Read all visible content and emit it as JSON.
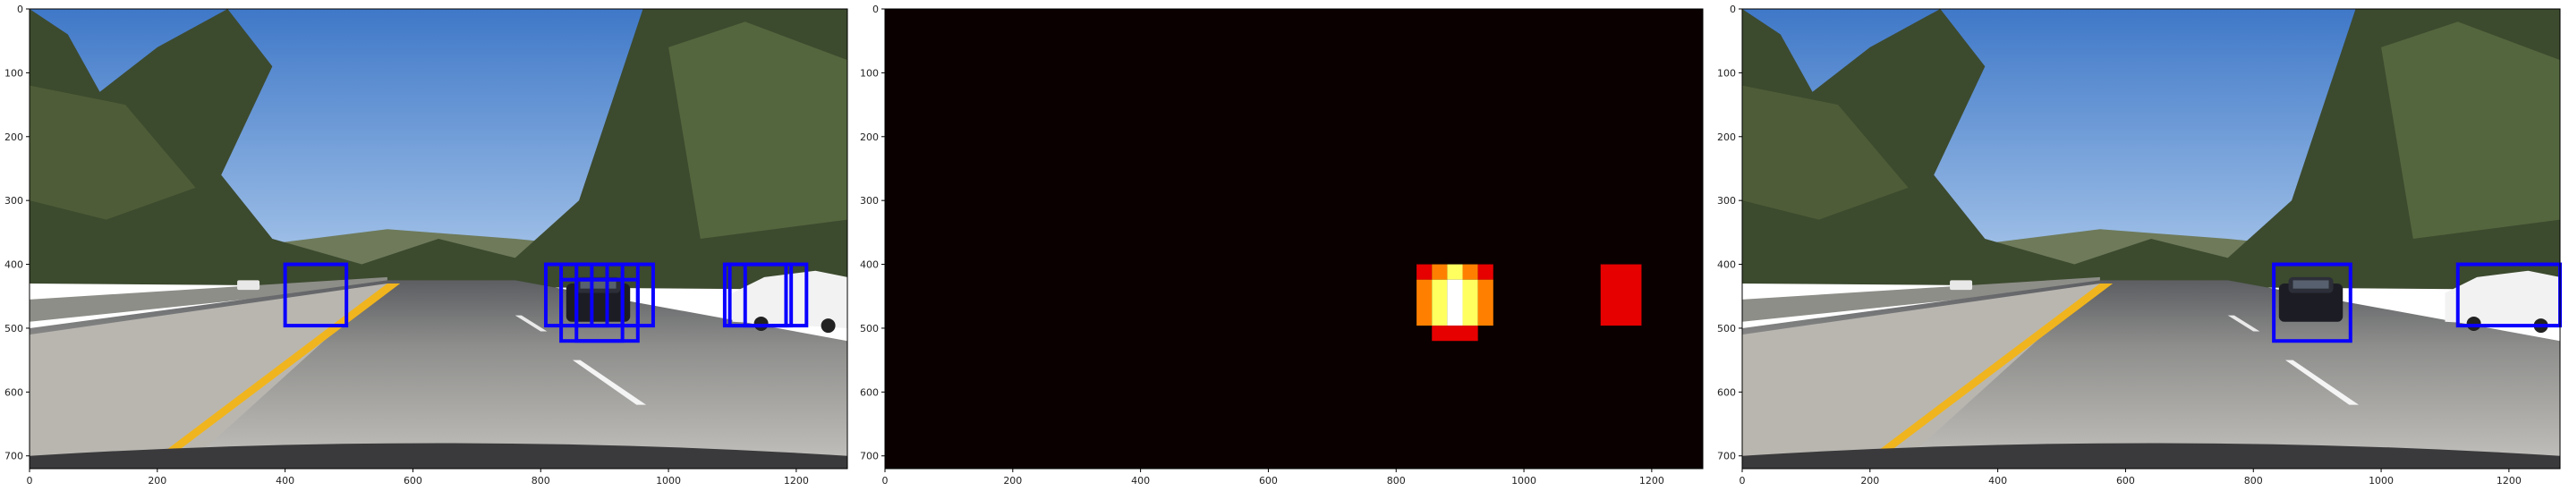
{
  "chart_data": [
    {
      "type": "image",
      "title": "",
      "xlabel": "",
      "ylabel": "",
      "xlim": [
        0,
        1280
      ],
      "ylim": [
        720,
        0
      ],
      "xticks": [
        0,
        200,
        400,
        600,
        800,
        1000,
        1200
      ],
      "yticks": [
        0,
        100,
        200,
        300,
        400,
        500,
        600,
        700
      ],
      "content": "road scene with raw detection windows",
      "box_color": "#0a00ff",
      "boxes": [
        [
          400,
          400,
          496,
          496
        ],
        [
          808,
          400,
          904,
          496
        ],
        [
          832,
          400,
          928,
          496
        ],
        [
          856,
          400,
          952,
          496
        ],
        [
          880,
          400,
          976,
          496
        ],
        [
          832,
          424,
          928,
          520
        ],
        [
          856,
          424,
          952,
          520
        ],
        [
          1096,
          400,
          1192,
          496
        ],
        [
          1120,
          400,
          1216,
          496
        ],
        [
          1088,
          400,
          1184,
          496
        ]
      ]
    },
    {
      "type": "heatmap",
      "title": "",
      "xlabel": "",
      "ylabel": "",
      "xlim": [
        0,
        1280
      ],
      "ylim": [
        720,
        0
      ],
      "xticks": [
        0,
        200,
        400,
        600,
        800,
        1000,
        1200
      ],
      "yticks": [
        0,
        100,
        200,
        300,
        400,
        500,
        600,
        700
      ],
      "colormap": "hot",
      "background_color": "#0b0000",
      "vmax": 6,
      "cells": [
        [
          832,
          400,
          856,
          424,
          2
        ],
        [
          856,
          400,
          880,
          424,
          3
        ],
        [
          880,
          400,
          904,
          424,
          4
        ],
        [
          904,
          400,
          928,
          424,
          3
        ],
        [
          928,
          400,
          952,
          424,
          2
        ],
        [
          832,
          424,
          856,
          496,
          3
        ],
        [
          856,
          424,
          880,
          496,
          4
        ],
        [
          880,
          424,
          904,
          496,
          6
        ],
        [
          904,
          424,
          928,
          496,
          4
        ],
        [
          928,
          424,
          952,
          496,
          3
        ],
        [
          856,
          496,
          928,
          520,
          2
        ],
        [
          1120,
          400,
          1184,
          496,
          2
        ]
      ]
    },
    {
      "type": "image",
      "title": "",
      "xlabel": "",
      "ylabel": "",
      "xlim": [
        0,
        1280
      ],
      "ylim": [
        720,
        0
      ],
      "xticks": [
        0,
        200,
        400,
        600,
        800,
        1000,
        1200
      ],
      "yticks": [
        0,
        100,
        200,
        300,
        400,
        500,
        600,
        700
      ],
      "content": "road scene with merged vehicle bounding boxes",
      "box_color": "#0a00ff",
      "boxes": [
        [
          832,
          400,
          952,
          520
        ],
        [
          1120,
          400,
          1280,
          496
        ]
      ]
    }
  ],
  "colors": {
    "sky": "#6f9fd6",
    "road": "#a8a6a2",
    "lane_line": "#f0b51e",
    "tree": "#3c4a2e",
    "car_white": "#f2f2f2",
    "car_dark": "#1c1d24",
    "heat_low": "#e60000",
    "heat_mid": "#ff8000",
    "heat_high": "#ffff60",
    "heat_max": "#ffffff"
  },
  "icons": [
    "road-photo",
    "heatmap-image"
  ]
}
